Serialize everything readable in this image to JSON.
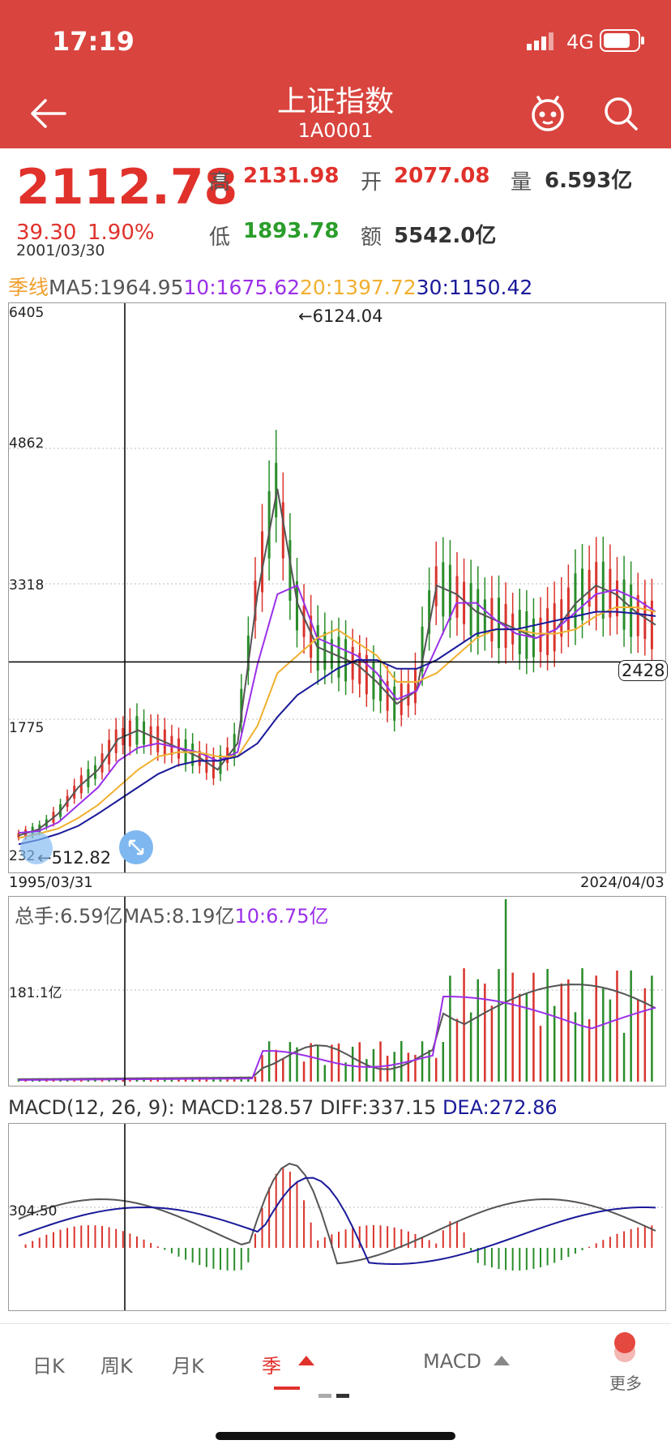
{
  "status_bar": {
    "time": "17:19",
    "network": "4G"
  },
  "nav": {
    "title": "上证指数",
    "code": "1A0001"
  },
  "quote": {
    "price": "2112.78",
    "change": "39.30",
    "change_pct": "1.90%",
    "date": "2001/03/30",
    "high_label": "高",
    "high": "2131.98",
    "open_label": "开",
    "open": "2077.08",
    "volume_label": "量",
    "volume": "6.593亿",
    "low_label": "低",
    "low": "1893.78",
    "amount_label": "额",
    "amount": "5542.0亿"
  },
  "ma_legend": {
    "period": "季线",
    "ma5": "MA5:1964.95",
    "ma10": "10:1675.62",
    "ma20": "20:1397.72",
    "ma30": "30:1150.42"
  },
  "main_chart": {
    "y_labels": [
      "6405",
      "4862",
      "3318",
      "1775",
      "232"
    ],
    "max_label": "←6124.04",
    "min_label": "←512.82",
    "crosshair_value": "2428",
    "range_start": "1995/03/31",
    "range_end": "2024/04/03"
  },
  "volume_chart": {
    "legend_total": "总手:6.59亿",
    "legend_ma5": "MA5:8.19亿",
    "legend_ma10": "10:6.75亿",
    "y_label": "181.1亿"
  },
  "macd_chart": {
    "legend_params": "MACD(12, 26, 9):",
    "legend_macd": "MACD:128.57",
    "legend_diff": "DIFF:337.15",
    "legend_dea": "DEA:272.86",
    "y_label": "304.50"
  },
  "tabs": {
    "day": "日K",
    "week": "周K",
    "month": "月K",
    "season": "季",
    "indicator": "MACD",
    "more": "更多"
  },
  "colors": {
    "header": "#d9443e",
    "up": "#e0312b",
    "down": "#2a9d2a",
    "ma5": "#555555",
    "ma10": "#9b30e8",
    "ma20": "#f0b030",
    "ma30": "#1a1a9a"
  },
  "chart_data": {
    "type": "line",
    "y_range": [
      232,
      6405
    ],
    "x_range": [
      "1995/03/31",
      "2024/04/03"
    ],
    "series": [
      {
        "name": "MA5",
        "values": [
          450,
          520,
          700,
          1000,
          1200,
          1550,
          1650,
          1550,
          1450,
          1350,
          1200,
          1500,
          3200,
          4400,
          3100,
          2600,
          2500,
          2400,
          2200,
          1950,
          2100,
          3300,
          3200,
          3000,
          2900,
          2800,
          2700,
          2800,
          3100,
          3300,
          3200,
          3000,
          2850
        ]
      },
      {
        "name": "10",
        "values": [
          480,
          500,
          600,
          800,
          1000,
          1300,
          1450,
          1500,
          1450,
          1400,
          1300,
          1400,
          2400,
          3200,
          3300,
          2700,
          2600,
          2500,
          2300,
          2000,
          2100,
          2600,
          3100,
          3100,
          2900,
          2750,
          2700,
          2800,
          3000,
          3200,
          3250,
          3150,
          3000
        ]
      },
      {
        "name": "20",
        "values": [
          420,
          470,
          530,
          650,
          800,
          1000,
          1200,
          1350,
          1400,
          1400,
          1350,
          1350,
          1700,
          2300,
          2500,
          2700,
          2800,
          2650,
          2500,
          2200,
          2200,
          2300,
          2500,
          2700,
          2800,
          2800,
          2750,
          2750,
          2800,
          2950,
          3050,
          3050,
          3000
        ]
      },
      {
        "name": "30",
        "values": [
          350,
          400,
          470,
          560,
          700,
          850,
          1000,
          1150,
          1250,
          1300,
          1300,
          1350,
          1500,
          1800,
          2050,
          2200,
          2350,
          2450,
          2450,
          2350,
          2350,
          2450,
          2600,
          2750,
          2800,
          2800,
          2850,
          2900,
          2950,
          3000,
          3000,
          2980,
          2950
        ]
      }
    ]
  }
}
